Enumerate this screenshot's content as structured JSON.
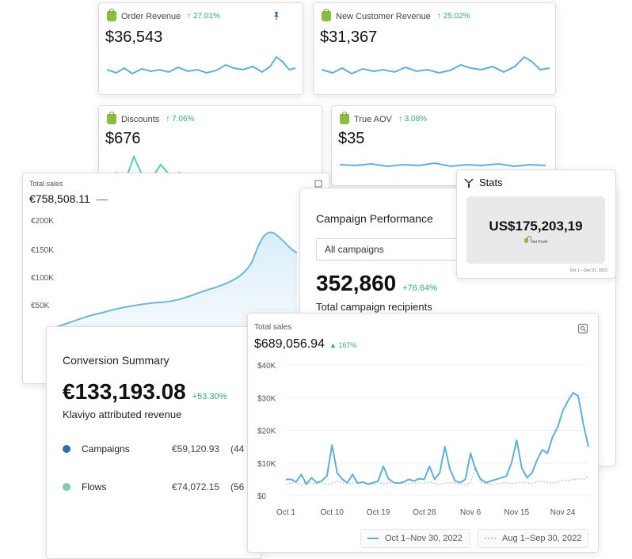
{
  "cards": {
    "order_revenue": {
      "label": "Order Revenue",
      "delta": "↑ 27.01%",
      "value": "$36,543"
    },
    "new_customer_revenue": {
      "label": "New Customer Revenue",
      "delta": "↑ 25.02%",
      "value": "$31,367"
    },
    "discounts": {
      "label": "Discounts",
      "delta": "↑ 7.06%",
      "value": "$676"
    },
    "true_aov": {
      "label": "True AOV",
      "delta": "↑ 3.08%",
      "value": "$35"
    }
  },
  "total_sales_eur": {
    "label": "Total sales",
    "value": "€758,508.11",
    "dash": "—",
    "y_ticks": [
      "€200K",
      "€150K",
      "€100K",
      "€50K"
    ]
  },
  "campaign": {
    "title": "Campaign Performance",
    "select_value": "All campaigns",
    "value": "352,860",
    "delta": "+76.64%",
    "caption": "Total campaign recipients"
  },
  "stats": {
    "brand": "Stats",
    "value": "US$175,203,19",
    "sub": "Net Profit",
    "date": "Oct 1 – Dec 31, 2022"
  },
  "conversion": {
    "title": "Conversion Summary",
    "value": "€133,193.08",
    "delta": "+53.30%",
    "caption": "Klaviyo attributed revenue",
    "rows": [
      {
        "name": "Campaigns",
        "amount": "€59,120.93",
        "extra": "(44",
        "color": "#2f6db3"
      },
      {
        "name": "Flows",
        "amount": "€74,072.15",
        "extra": "(56",
        "color": "#7dcfa7"
      }
    ]
  },
  "total_sales_usd": {
    "label": "Total sales",
    "value": "$689,056.94",
    "delta": "▲ 167%",
    "legend_current": "Oct 1–Nov 30, 2022",
    "legend_previous": "Aug 1–Sep 30, 2022"
  },
  "chart_data": [
    {
      "type": "line",
      "title": "Total sales",
      "ylabel": "",
      "ylim": [
        0,
        40000
      ],
      "y_ticks": [
        "$0",
        "$10K",
        "$20K",
        "$30K",
        "$40K"
      ],
      "x_tick_labels": [
        "Oct 1",
        "Oct 10",
        "Oct 19",
        "Oct 28",
        "Nov 6",
        "Nov 15",
        "Nov 24"
      ],
      "x_tick_index": [
        0,
        9,
        18,
        27,
        36,
        45,
        54
      ],
      "series": [
        {
          "name": "Oct 1–Nov 30, 2022",
          "color": "#5fb0d8",
          "values": [
            5000,
            5000,
            4200,
            6500,
            3500,
            5500,
            4000,
            4500,
            6000,
            15500,
            7000,
            5000,
            4000,
            6500,
            3800,
            4200,
            3500,
            4000,
            4500,
            9000,
            5200,
            4000,
            3800,
            4200,
            5000,
            4500,
            5200,
            5000,
            9000,
            5000,
            7000,
            15000,
            8000,
            4500,
            4000,
            5000,
            13000,
            8000,
            5000,
            4000,
            4500,
            5000,
            5500,
            6000,
            10000,
            17000,
            8500,
            5500,
            7000,
            11000,
            14000,
            13000,
            18000,
            21000,
            26000,
            29000,
            31500,
            30500,
            22000,
            15000
          ]
        },
        {
          "name": "Aug 1–Sep 30, 2022",
          "color": "#b7c4cf",
          "values": [
            3500,
            3800,
            4000,
            3200,
            4200,
            3800,
            3600,
            4000,
            3500,
            3800,
            4500,
            4000,
            3600,
            3900,
            4200,
            3800,
            3700,
            3500,
            4000,
            3600,
            3900,
            4100,
            3800,
            3700,
            3600,
            3900,
            4000,
            3800,
            4200,
            3700,
            3500,
            3900,
            4000,
            3800,
            3600,
            3500,
            3800,
            9000,
            4000,
            3800,
            3500,
            3600,
            3800,
            4000,
            3700,
            3900,
            4100,
            4000,
            3800,
            4200,
            4500,
            4000,
            3800,
            4200,
            4800,
            4500,
            5000,
            5200,
            5000,
            6000
          ]
        }
      ]
    }
  ]
}
